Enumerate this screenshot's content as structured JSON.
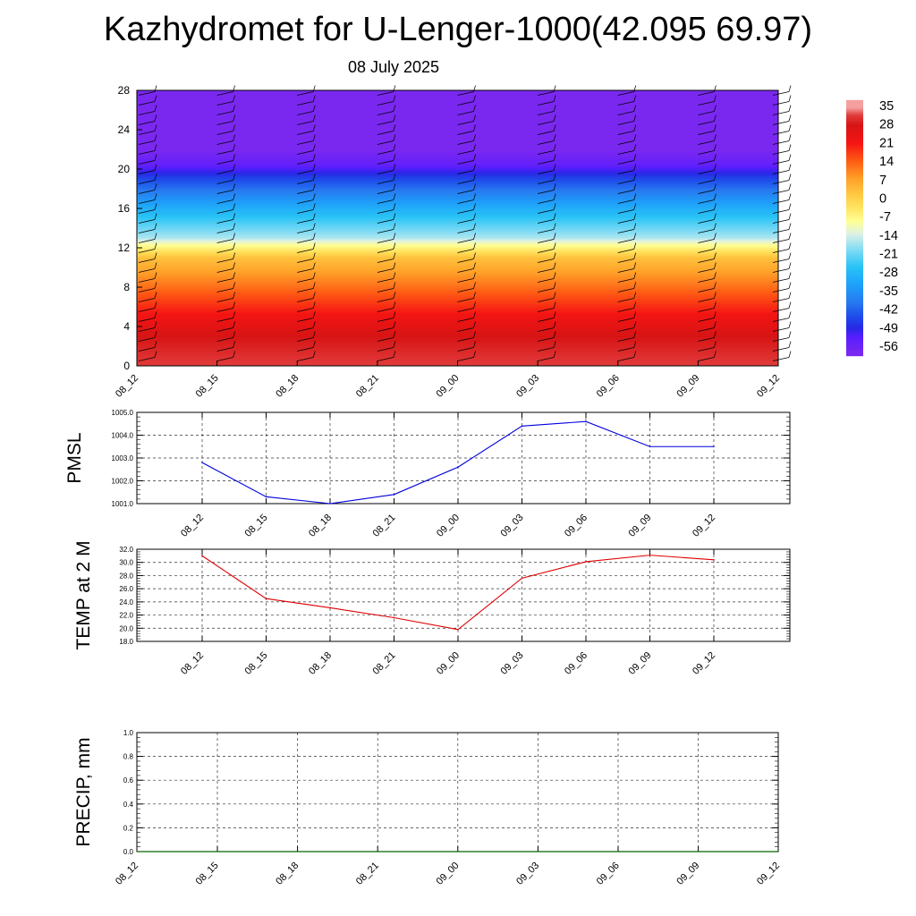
{
  "title": "Kazhydromet for U-Lenger-1000(42.095 69.97)",
  "subtitle": "08 July 2025",
  "chart_data": [
    {
      "type": "heatmap",
      "title": "",
      "xlabel": "",
      "ylabel": "",
      "x_ticks": [
        "08_12",
        "08_15",
        "08_18",
        "08_21",
        "09_00",
        "09_03",
        "09_06",
        "09_09",
        "09_12"
      ],
      "y_ticks": [
        0,
        4,
        8,
        12,
        16,
        20,
        24,
        28
      ],
      "ylim": [
        0,
        28
      ],
      "colorbar_labels": [
        "35",
        "28",
        "21",
        "14",
        "7",
        "0",
        "-7",
        "-14",
        "-21",
        "-28",
        "-35",
        "-42",
        "-49",
        "-56"
      ],
      "profile": [
        {
          "y": 0,
          "value": 32
        },
        {
          "y": 3,
          "value": 28
        },
        {
          "y": 5,
          "value": 22
        },
        {
          "y": 8,
          "value": 12
        },
        {
          "y": 11,
          "value": 2
        },
        {
          "y": 12.5,
          "value": -12
        },
        {
          "y": 13,
          "value": -18
        },
        {
          "y": 16,
          "value": -32
        },
        {
          "y": 19,
          "value": -48
        },
        {
          "y": 20.5,
          "value": -58
        },
        {
          "y": 22,
          "value": -62
        },
        {
          "y": 28,
          "value": -62
        }
      ]
    },
    {
      "type": "line",
      "title": "",
      "ylabel": "PMSL",
      "series_color": "#0000dd",
      "categories": [
        "08_12",
        "08_15",
        "08_18",
        "08_21",
        "09_00",
        "09_03",
        "09_06",
        "09_09",
        "09_12"
      ],
      "values": [
        1002.8,
        1001.3,
        1001.0,
        1001.4,
        1002.6,
        1004.4,
        1004.6,
        1003.5,
        1003.5
      ],
      "y_ticks": [
        "1001.0",
        "1002.0",
        "1003.0",
        "1004.0",
        "1005.0"
      ],
      "ylim": [
        1001,
        1005
      ]
    },
    {
      "type": "line",
      "title": "",
      "ylabel": "TEMP at 2 M",
      "series_color": "#dd0000",
      "categories": [
        "08_12",
        "08_15",
        "08_18",
        "08_21",
        "09_00",
        "09_03",
        "09_06",
        "09_09",
        "09_12"
      ],
      "values": [
        31.0,
        24.5,
        23.1,
        21.6,
        19.8,
        27.6,
        30.1,
        31.1,
        30.4
      ],
      "y_ticks": [
        "18.0",
        "20.0",
        "22.0",
        "24.0",
        "26.0",
        "28.0",
        "30.0",
        "32.0"
      ],
      "ylim": [
        18,
        32
      ]
    },
    {
      "type": "line",
      "title": "",
      "ylabel": "PRECIP, mm",
      "series_color": "#006600",
      "categories": [
        "08_12",
        "08_15",
        "08_18",
        "08_21",
        "09_00",
        "09_03",
        "09_06",
        "09_09",
        "09_12"
      ],
      "values": [
        0,
        0,
        0,
        0,
        0,
        0,
        0,
        0,
        0
      ],
      "y_ticks": [
        "0.0",
        "0.2",
        "0.4",
        "0.6",
        "0.8",
        "1.0"
      ],
      "ylim": [
        0,
        1
      ]
    }
  ]
}
